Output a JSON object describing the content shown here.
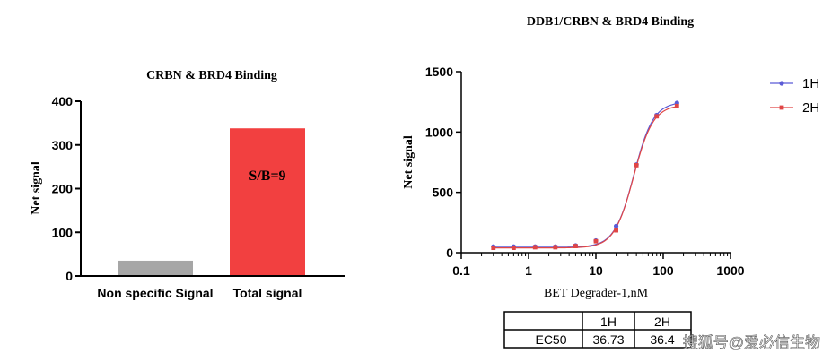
{
  "chart_data": [
    {
      "type": "bar",
      "title": "CRBN & BRD4 Binding",
      "xlabel": "",
      "ylabel": "Net signal",
      "ylim": [
        0,
        400
      ],
      "yticks": [
        "0",
        "100",
        "200",
        "300",
        "400"
      ],
      "categories": [
        "Non specific Signal",
        "Total signal"
      ],
      "values": [
        35,
        338
      ],
      "colors": [
        "#a6a6a6",
        "#f24040"
      ],
      "annotation": "S/B=9"
    },
    {
      "type": "line",
      "title": "DDB1/CRBN & BRD4 Binding",
      "xlabel": "BET Degrader-1,nM",
      "ylabel": "Net signal",
      "xscale": "log",
      "xlim": [
        0.1,
        1000
      ],
      "ylim": [
        0,
        1500
      ],
      "xticks": [
        "0.1",
        "1",
        "10",
        "100",
        "1000"
      ],
      "yticks": [
        "0",
        "500",
        "1000",
        "1500"
      ],
      "series": [
        {
          "name": "1H",
          "color": "#5b5bd6",
          "x": [
            0.3,
            0.6,
            1.25,
            2.5,
            5,
            10,
            20,
            40,
            80,
            160
          ],
          "y": [
            50,
            50,
            50,
            50,
            60,
            100,
            220,
            730,
            1140,
            1240
          ],
          "fit": {
            "bottom": 45,
            "top": 1250,
            "ec50": 36.73,
            "hill": 3.0
          }
        },
        {
          "name": "2H",
          "color": "#e04545",
          "x": [
            0.3,
            0.6,
            1.25,
            2.5,
            5,
            10,
            20,
            40,
            80,
            160
          ],
          "y": [
            40,
            40,
            45,
            45,
            55,
            95,
            185,
            725,
            1130,
            1215
          ],
          "fit": {
            "bottom": 40,
            "top": 1225,
            "ec50": 36.4,
            "hill": 3.0
          }
        }
      ],
      "legend_position": "right"
    }
  ],
  "table": {
    "headers": [
      "",
      "1H",
      "2H"
    ],
    "rows": [
      [
        "EC50",
        "36.73",
        "36.4"
      ]
    ]
  },
  "watermark": "搜狐号@爱必信生物"
}
